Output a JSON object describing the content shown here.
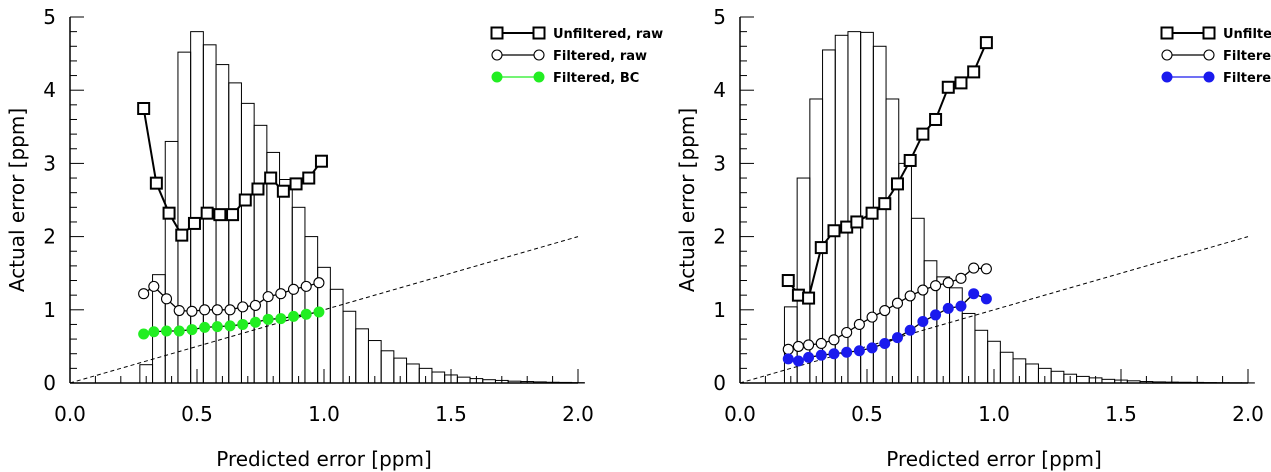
{
  "chart_data": [
    {
      "type": "line",
      "xlabel": "Predicted error [ppm]",
      "ylabel": "Actual error [ppm]",
      "xlim": [
        0,
        2
      ],
      "ylim": [
        0,
        5
      ],
      "xticks": [
        "0.0",
        "0.5",
        "1.0",
        "1.5",
        "2.0"
      ],
      "yticks": [
        "0",
        "1",
        "2",
        "3",
        "4",
        "5"
      ],
      "legend_position": "top-right",
      "reference_line": {
        "x": [
          0,
          2
        ],
        "y": [
          0,
          2
        ],
        "style": "dashed"
      },
      "histogram": {
        "bin_width": 0.05,
        "bins_start": [
          0.275,
          0.325,
          0.375,
          0.425,
          0.475,
          0.525,
          0.575,
          0.625,
          0.675,
          0.725,
          0.775,
          0.825,
          0.875,
          0.925,
          0.975,
          1.025,
          1.075,
          1.125,
          1.175,
          1.225,
          1.275,
          1.325,
          1.375,
          1.425,
          1.475,
          1.525,
          1.575,
          1.625,
          1.675,
          1.725,
          1.775,
          1.825,
          1.875,
          1.925,
          1.975
        ],
        "heights": [
          0.25,
          1.48,
          3.3,
          4.52,
          4.8,
          4.62,
          4.35,
          4.1,
          3.82,
          3.52,
          3.15,
          2.78,
          2.4,
          2.0,
          1.58,
          1.28,
          0.98,
          0.74,
          0.58,
          0.44,
          0.34,
          0.26,
          0.2,
          0.15,
          0.11,
          0.08,
          0.06,
          0.045,
          0.035,
          0.025,
          0.02,
          0.015,
          0.01,
          0.008,
          0.005
        ]
      },
      "series": [
        {
          "name": "Unfiltered, raw",
          "marker": "square",
          "color": "#000000",
          "x": [
            0.29,
            0.34,
            0.39,
            0.44,
            0.49,
            0.54,
            0.59,
            0.64,
            0.69,
            0.74,
            0.79,
            0.84,
            0.89,
            0.94,
            0.99
          ],
          "y": [
            3.75,
            2.73,
            2.32,
            2.02,
            2.18,
            2.32,
            2.3,
            2.3,
            2.5,
            2.65,
            2.8,
            2.62,
            2.72,
            2.8,
            3.03
          ]
        },
        {
          "name": "Filtered, raw",
          "marker": "open-circle",
          "color": "#000000",
          "x": [
            0.29,
            0.33,
            0.38,
            0.43,
            0.48,
            0.53,
            0.58,
            0.63,
            0.68,
            0.73,
            0.78,
            0.83,
            0.88,
            0.93,
            0.98
          ],
          "y": [
            1.22,
            1.32,
            1.15,
            0.99,
            0.98,
            1.0,
            1.0,
            1.0,
            1.04,
            1.06,
            1.18,
            1.22,
            1.28,
            1.32,
            1.37
          ]
        },
        {
          "name": "Filtered, BC",
          "marker": "filled-circle",
          "color": "#22ee22",
          "x": [
            0.29,
            0.33,
            0.38,
            0.43,
            0.48,
            0.53,
            0.58,
            0.63,
            0.68,
            0.73,
            0.78,
            0.83,
            0.88,
            0.93,
            0.98
          ],
          "y": [
            0.67,
            0.7,
            0.71,
            0.71,
            0.73,
            0.76,
            0.77,
            0.78,
            0.8,
            0.83,
            0.87,
            0.88,
            0.91,
            0.94,
            0.97
          ]
        }
      ]
    },
    {
      "type": "line",
      "xlabel": "Predicted error [ppm]",
      "ylabel": "Actual error [ppm]",
      "xlim": [
        0,
        2
      ],
      "ylim": [
        0,
        5
      ],
      "xticks": [
        "0.0",
        "0.5",
        "1.0",
        "1.5",
        "2.0"
      ],
      "yticks": [
        "0",
        "1",
        "2",
        "3",
        "4",
        "5"
      ],
      "legend_position": "top-right",
      "reference_line": {
        "x": [
          0,
          2
        ],
        "y": [
          0,
          2
        ],
        "style": "dashed"
      },
      "histogram": {
        "bin_width": 0.05,
        "bins_start": [
          0.175,
          0.225,
          0.275,
          0.325,
          0.375,
          0.425,
          0.475,
          0.525,
          0.575,
          0.625,
          0.675,
          0.725,
          0.775,
          0.825,
          0.875,
          0.925,
          0.975,
          1.025,
          1.075,
          1.125,
          1.175,
          1.225,
          1.275,
          1.325,
          1.375,
          1.425,
          1.475,
          1.525,
          1.575,
          1.625,
          1.675,
          1.725,
          1.775,
          1.825,
          1.875,
          1.925,
          1.975
        ],
        "heights": [
          1.04,
          2.8,
          3.88,
          4.55,
          4.75,
          4.8,
          4.79,
          4.6,
          3.88,
          3.0,
          2.25,
          1.67,
          1.45,
          1.3,
          0.95,
          0.72,
          0.57,
          0.42,
          0.33,
          0.26,
          0.2,
          0.16,
          0.12,
          0.09,
          0.07,
          0.05,
          0.04,
          0.03,
          0.02,
          0.015,
          0.012,
          0.01,
          0.008,
          0.006,
          0.004,
          0.003,
          0.002
        ]
      },
      "series": [
        {
          "name": "Unfiltered, raw",
          "marker": "square",
          "color": "#000000",
          "x": [
            0.19,
            0.23,
            0.27,
            0.32,
            0.37,
            0.42,
            0.46,
            0.52,
            0.57,
            0.62,
            0.67,
            0.72,
            0.77,
            0.82,
            0.87,
            0.92,
            0.97
          ],
          "y": [
            1.4,
            1.2,
            1.16,
            1.85,
            2.08,
            2.13,
            2.2,
            2.32,
            2.45,
            2.72,
            3.04,
            3.4,
            3.6,
            4.04,
            4.1,
            4.25,
            4.65
          ]
        },
        {
          "name": "Filtered, raw",
          "marker": "open-circle",
          "color": "#000000",
          "x": [
            0.19,
            0.23,
            0.27,
            0.32,
            0.37,
            0.42,
            0.47,
            0.52,
            0.57,
            0.62,
            0.67,
            0.72,
            0.77,
            0.82,
            0.87,
            0.92,
            0.97
          ],
          "y": [
            0.46,
            0.5,
            0.52,
            0.54,
            0.59,
            0.69,
            0.8,
            0.9,
            0.99,
            1.09,
            1.19,
            1.27,
            1.33,
            1.37,
            1.43,
            1.57,
            1.56
          ]
        },
        {
          "name": "Filtered, BC",
          "marker": "filled-circle",
          "color": "#1a1aee",
          "x": [
            0.19,
            0.23,
            0.27,
            0.32,
            0.37,
            0.42,
            0.47,
            0.52,
            0.57,
            0.62,
            0.67,
            0.72,
            0.77,
            0.82,
            0.87,
            0.92,
            0.97
          ],
          "y": [
            0.33,
            0.3,
            0.35,
            0.38,
            0.4,
            0.42,
            0.44,
            0.48,
            0.54,
            0.62,
            0.72,
            0.84,
            0.93,
            1.02,
            1.05,
            1.22,
            1.15
          ]
        }
      ]
    }
  ]
}
